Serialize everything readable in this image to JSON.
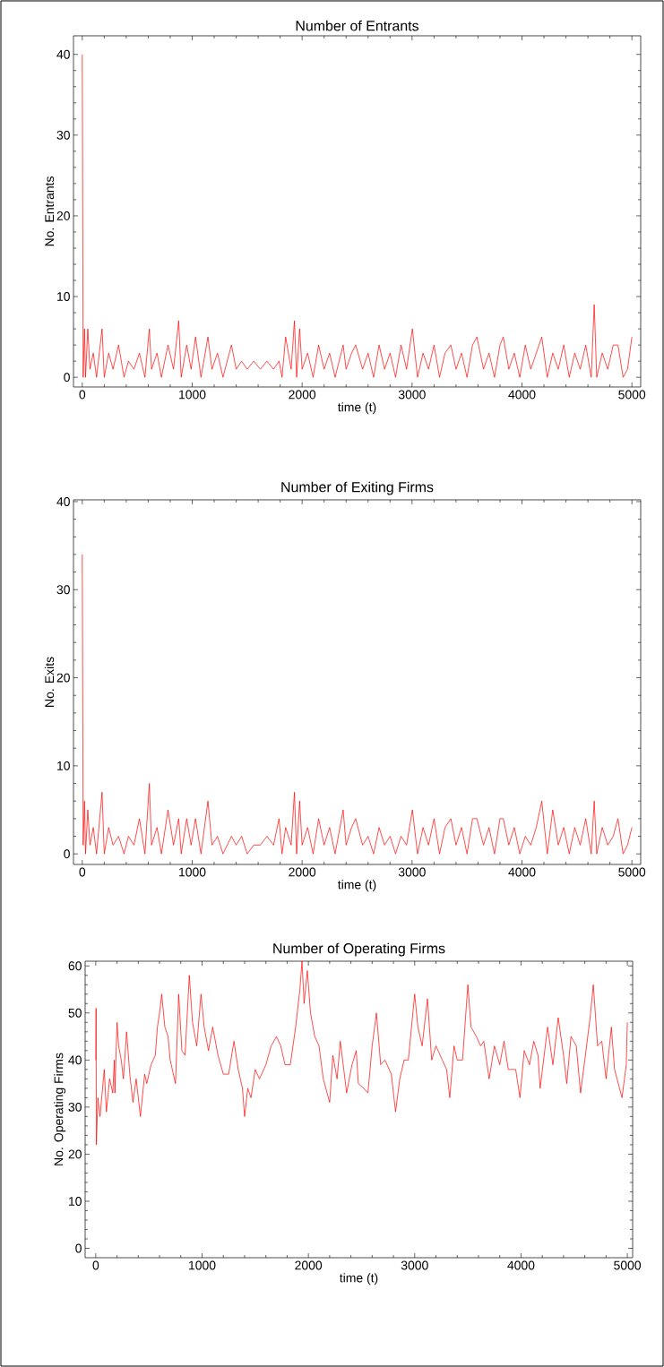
{
  "chart_data": [
    {
      "type": "line",
      "title": "Number of Entrants",
      "xlabel": "time (t)",
      "ylabel": "No. Entrants",
      "xlim": [
        -80,
        5080
      ],
      "ylim": [
        -1.2,
        42.3
      ],
      "xticks": [
        0,
        1000,
        2000,
        3000,
        4000,
        5000
      ],
      "yticks": [
        0,
        10,
        20,
        30,
        40
      ],
      "line_style": "solid",
      "x": [
        0,
        8,
        20,
        30,
        50,
        70,
        100,
        130,
        180,
        200,
        240,
        280,
        330,
        380,
        420,
        470,
        520,
        570,
        610,
        630,
        680,
        720,
        780,
        830,
        877,
        900,
        950,
        990,
        1030,
        1080,
        1143,
        1180,
        1230,
        1280,
        1357,
        1400,
        1450,
        1500,
        1560,
        1620,
        1680,
        1740,
        1790,
        1817,
        1850,
        1900,
        1930,
        1950,
        1977,
        2000,
        2050,
        2100,
        2150,
        2200,
        2250,
        2300,
        2373,
        2400,
        2450,
        2487,
        2550,
        2600,
        2650,
        2700,
        2750,
        2800,
        2850,
        2900,
        2950,
        3003,
        3050,
        3100,
        3150,
        3200,
        3250,
        3300,
        3353,
        3400,
        3450,
        3500,
        3550,
        3590,
        3650,
        3700,
        3750,
        3800,
        3830,
        3880,
        3930,
        3980,
        4030,
        4080,
        4130,
        4180,
        4230,
        4280,
        4330,
        4380,
        4430,
        4480,
        4530,
        4580,
        4630,
        4657,
        4680,
        4730,
        4780,
        4830,
        4873,
        4920,
        4960,
        5000
      ],
      "series": [
        {
          "color": "#ff0000",
          "values": [
            40,
            0,
            6,
            0,
            6,
            1,
            3,
            0,
            6,
            0,
            3,
            1,
            4,
            0,
            2,
            1,
            3,
            0,
            6,
            1,
            3,
            0,
            4,
            1,
            7,
            0,
            4,
            1,
            5,
            0,
            5,
            1,
            3,
            0,
            4,
            1,
            2,
            1,
            2,
            1,
            2,
            1,
            2,
            0,
            5,
            1,
            7,
            0,
            6,
            1,
            3,
            0,
            4,
            1,
            3,
            0,
            4,
            1,
            3,
            4,
            1,
            3,
            0,
            4,
            1,
            3,
            0,
            4,
            1,
            6,
            0,
            3,
            1,
            4,
            0,
            3,
            4,
            1,
            3,
            0,
            4,
            5,
            1,
            3,
            0,
            4,
            5,
            1,
            3,
            0,
            4,
            1,
            3,
            5,
            0,
            3,
            1,
            4,
            0,
            3,
            1,
            4,
            0,
            9,
            0,
            3,
            1,
            4,
            4,
            0,
            1,
            5
          ]
        }
      ]
    },
    {
      "type": "line",
      "title": "Number of Exiting Firms",
      "xlabel": "time (t)",
      "ylabel": "No. Exits",
      "xlim": [
        -80,
        5080
      ],
      "ylim": [
        -1.2,
        40.2
      ],
      "xticks": [
        0,
        1000,
        2000,
        3000,
        4000,
        5000
      ],
      "yticks": [
        0,
        10,
        20,
        30,
        40
      ],
      "line_style": "solid",
      "x": [
        0,
        8,
        20,
        30,
        50,
        70,
        100,
        130,
        180,
        200,
        240,
        280,
        330,
        380,
        420,
        470,
        520,
        570,
        610,
        630,
        680,
        720,
        780,
        830,
        877,
        900,
        950,
        990,
        1030,
        1080,
        1143,
        1180,
        1230,
        1280,
        1357,
        1400,
        1450,
        1500,
        1560,
        1620,
        1680,
        1740,
        1790,
        1817,
        1850,
        1900,
        1930,
        1950,
        1977,
        2000,
        2050,
        2100,
        2150,
        2200,
        2250,
        2300,
        2373,
        2400,
        2450,
        2487,
        2550,
        2600,
        2650,
        2700,
        2750,
        2800,
        2850,
        2900,
        2950,
        3003,
        3050,
        3100,
        3150,
        3200,
        3250,
        3300,
        3353,
        3400,
        3450,
        3500,
        3550,
        3590,
        3650,
        3700,
        3750,
        3800,
        3830,
        3880,
        3930,
        3980,
        4030,
        4080,
        4130,
        4180,
        4230,
        4280,
        4330,
        4380,
        4430,
        4480,
        4530,
        4580,
        4630,
        4657,
        4680,
        4730,
        4780,
        4830,
        4873,
        4920,
        4960,
        5000
      ],
      "series": [
        {
          "color": "#ff0000",
          "values": [
            34,
            1,
            6,
            0,
            5,
            1,
            3,
            0,
            7,
            0,
            3,
            1,
            2,
            0,
            2,
            1,
            4,
            0,
            8,
            1,
            3,
            0,
            5,
            1,
            4,
            0,
            4,
            1,
            4,
            0,
            6,
            1,
            2,
            0,
            2,
            1,
            2,
            0,
            1,
            1,
            2,
            1,
            4,
            0,
            3,
            1,
            7,
            0,
            6,
            1,
            3,
            0,
            4,
            1,
            3,
            0,
            5,
            1,
            3,
            4,
            1,
            2,
            0,
            3,
            1,
            2,
            0,
            2,
            1,
            5,
            0,
            3,
            1,
            4,
            0,
            3,
            4,
            1,
            3,
            0,
            4,
            4,
            1,
            3,
            0,
            4,
            4,
            1,
            3,
            0,
            2,
            1,
            3,
            6,
            0,
            5,
            1,
            3,
            0,
            3,
            1,
            4,
            0,
            6,
            0,
            3,
            1,
            2,
            4,
            0,
            1,
            3
          ]
        }
      ]
    },
    {
      "type": "line",
      "title": "Number of Operating Firms",
      "xlabel": "time (t)",
      "ylabel": "No. Operating Firms",
      "xlim": [
        -100,
        5050
      ],
      "ylim": [
        -2,
        61
      ],
      "xticks": [
        0,
        1000,
        2000,
        3000,
        4000,
        5000
      ],
      "yticks": [
        0,
        10,
        20,
        30,
        40,
        50,
        60
      ],
      "line_style": "solid",
      "x": [
        0,
        3,
        6,
        20,
        40,
        80,
        100,
        130,
        160,
        175,
        180,
        200,
        215,
        240,
        260,
        290,
        320,
        350,
        380,
        420,
        460,
        480,
        520,
        560,
        580,
        600,
        620,
        650,
        680,
        700,
        720,
        750,
        780,
        810,
        840,
        880,
        910,
        950,
        990,
        1020,
        1060,
        1100,
        1150,
        1200,
        1250,
        1300,
        1340,
        1380,
        1400,
        1430,
        1460,
        1500,
        1540,
        1600,
        1650,
        1700,
        1740,
        1780,
        1830,
        1880,
        1920,
        1940,
        1960,
        1990,
        2020,
        2060,
        2100,
        2140,
        2200,
        2230,
        2270,
        2300,
        2360,
        2410,
        2450,
        2470,
        2520,
        2560,
        2600,
        2640,
        2680,
        2720,
        2780,
        2820,
        2860,
        2900,
        2940,
        3000,
        3030,
        3070,
        3120,
        3160,
        3200,
        3260,
        3300,
        3330,
        3370,
        3400,
        3450,
        3500,
        3530,
        3580,
        3620,
        3650,
        3700,
        3750,
        3800,
        3840,
        3880,
        3950,
        3990,
        4030,
        4080,
        4120,
        4160,
        4180,
        4250,
        4300,
        4350,
        4400,
        4430,
        4470,
        4520,
        4560,
        4600,
        4650,
        4680,
        4720,
        4760,
        4800,
        4850,
        4880,
        4950,
        4990,
        5000
      ],
      "series": [
        {
          "color": "#ff0000",
          "values": [
            40,
            51,
            22,
            32,
            28,
            38,
            29,
            36,
            33,
            40,
            33,
            48,
            43,
            40,
            36,
            46,
            37,
            31,
            36,
            28,
            37,
            35,
            39,
            41,
            47,
            50,
            54,
            47,
            45,
            40,
            38,
            35,
            54,
            42,
            41,
            58,
            48,
            43,
            54,
            47,
            42,
            47,
            41,
            37,
            37,
            44,
            38,
            34,
            28,
            34,
            32,
            38,
            36,
            39,
            43,
            45,
            43,
            39,
            39,
            47,
            55,
            61,
            52,
            59,
            50,
            45,
            43,
            36,
            31,
            41,
            36,
            44,
            33,
            39,
            42,
            35,
            34,
            33,
            43,
            50,
            39,
            40,
            37,
            29,
            36,
            40,
            40,
            54,
            47,
            43,
            53,
            40,
            43,
            40,
            38,
            32,
            43,
            40,
            40,
            56,
            47,
            45,
            43,
            44,
            36,
            43,
            39,
            44,
            38,
            38,
            32,
            42,
            39,
            44,
            41,
            34,
            47,
            39,
            49,
            41,
            35,
            45,
            43,
            33,
            40,
            49,
            56,
            43,
            44,
            36,
            47,
            38,
            32,
            39,
            48
          ]
        }
      ]
    }
  ]
}
